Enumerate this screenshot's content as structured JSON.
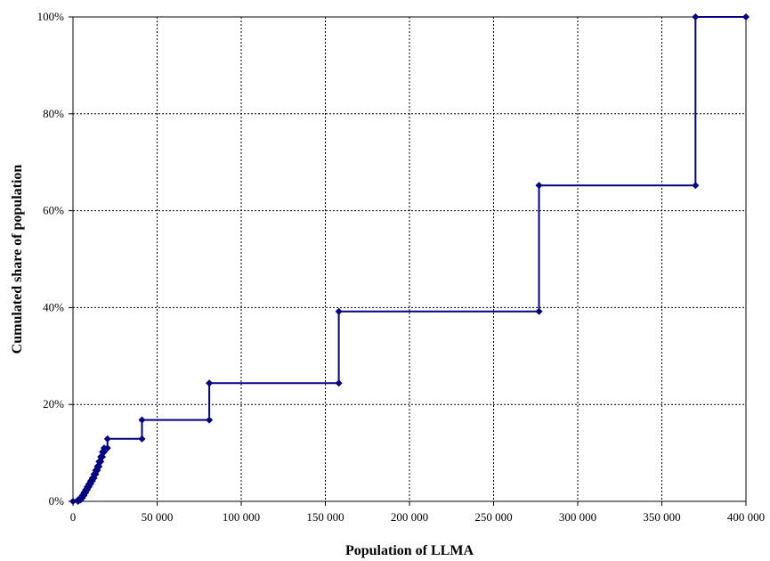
{
  "chart_data": {
    "type": "line",
    "title": "",
    "xlabel": "Population of LLMA",
    "ylabel": "Cumulated share of population",
    "xlim": [
      0,
      400000
    ],
    "ylim": [
      0,
      100
    ],
    "x_ticks": [
      0,
      50000,
      100000,
      150000,
      200000,
      250000,
      300000,
      350000,
      400000
    ],
    "x_tick_labels": [
      "0",
      "50 000",
      "100 000",
      "150 000",
      "200 000",
      "250 000",
      "300 000",
      "350 000",
      "400 000"
    ],
    "y_ticks": [
      0,
      20,
      40,
      60,
      80,
      100
    ],
    "y_tick_labels": [
      "0%",
      "20%",
      "40%",
      "60%",
      "80%",
      "100%"
    ],
    "grid": true,
    "grid_style": "dotted",
    "legend": "none",
    "line_color": "#000080",
    "marker": "diamond",
    "series": [
      {
        "x": [
          0,
          3000,
          3000,
          4500,
          4500,
          5500,
          5500,
          6500,
          6500,
          7500,
          7500,
          8500,
          8500,
          9500,
          9500,
          10500,
          10500,
          11500,
          11500,
          12500,
          12500,
          13500,
          13500,
          14500,
          14500,
          15500,
          15500,
          16500,
          16500,
          17500,
          17500,
          18500,
          18500,
          20500,
          20500,
          41000,
          41000,
          81000,
          81000,
          158000,
          158000,
          277000,
          277000,
          370000,
          370000,
          400000
        ],
        "y": [
          0,
          0,
          0.3,
          0.3,
          0.7,
          0.7,
          1.2,
          1.2,
          1.8,
          1.8,
          2.4,
          2.4,
          3.0,
          3.0,
          3.6,
          3.6,
          4.2,
          4.2,
          4.8,
          4.8,
          5.6,
          5.6,
          6.4,
          6.4,
          7.2,
          7.2,
          8.2,
          8.2,
          9.2,
          9.2,
          10.2,
          10.2,
          11.0,
          11.0,
          12.9,
          12.9,
          16.8,
          16.8,
          24.4,
          24.4,
          39.2,
          39.2,
          65.2,
          65.2,
          100,
          100
        ]
      }
    ]
  }
}
